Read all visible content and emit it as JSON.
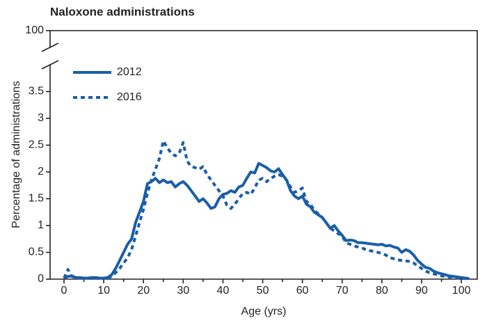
{
  "chart_data": {
    "type": "line",
    "title": "Naloxone administrations",
    "x_label": "Age (yrs)",
    "y_label": "Percentage of administrations",
    "x": [
      0,
      1,
      2,
      3,
      4,
      5,
      6,
      7,
      8,
      9,
      10,
      11,
      12,
      13,
      14,
      15,
      16,
      17,
      18,
      19,
      20,
      21,
      22,
      23,
      24,
      25,
      26,
      27,
      28,
      29,
      30,
      31,
      32,
      33,
      34,
      35,
      36,
      37,
      38,
      39,
      40,
      41,
      42,
      43,
      44,
      45,
      46,
      47,
      48,
      49,
      50,
      51,
      52,
      53,
      54,
      55,
      56,
      57,
      58,
      59,
      60,
      61,
      62,
      63,
      64,
      65,
      66,
      67,
      68,
      69,
      70,
      71,
      72,
      73,
      74,
      75,
      76,
      77,
      78,
      79,
      80,
      81,
      82,
      83,
      84,
      85,
      86,
      87,
      88,
      89,
      90,
      91,
      92,
      93,
      94,
      95,
      96,
      97,
      98,
      99,
      100,
      101,
      102
    ],
    "series": [
      {
        "name": "2012",
        "color": "#1a5ea8",
        "style": "solid",
        "values": [
          0.02,
          0.05,
          0.06,
          0.03,
          0.03,
          0.02,
          0.02,
          0.03,
          0.03,
          0.02,
          0.02,
          0.03,
          0.08,
          0.2,
          0.35,
          0.5,
          0.65,
          0.75,
          1.05,
          1.25,
          1.45,
          1.78,
          1.82,
          1.88,
          1.8,
          1.85,
          1.8,
          1.82,
          1.72,
          1.78,
          1.82,
          1.75,
          1.65,
          1.55,
          1.45,
          1.5,
          1.42,
          1.32,
          1.35,
          1.5,
          1.58,
          1.6,
          1.65,
          1.62,
          1.72,
          1.75,
          1.88,
          2.0,
          1.98,
          2.16,
          2.12,
          2.08,
          2.02,
          2.0,
          2.06,
          1.95,
          1.85,
          1.65,
          1.55,
          1.5,
          1.55,
          1.4,
          1.35,
          1.25,
          1.2,
          1.15,
          1.05,
          0.95,
          1.0,
          0.9,
          0.82,
          0.72,
          0.73,
          0.72,
          0.68,
          0.68,
          0.67,
          0.66,
          0.65,
          0.64,
          0.65,
          0.62,
          0.63,
          0.6,
          0.58,
          0.5,
          0.55,
          0.52,
          0.45,
          0.35,
          0.28,
          0.22,
          0.2,
          0.15,
          0.12,
          0.1,
          0.08,
          0.06,
          0.05,
          0.04,
          0.03,
          0.02,
          0.01
        ]
      },
      {
        "name": "2016",
        "color": "#1a5ea8",
        "style": "dotted",
        "values": [
          0.02,
          0.18,
          0.05,
          0.02,
          0.02,
          0.02,
          0.02,
          0.02,
          0.02,
          0.02,
          0.02,
          0.02,
          0.05,
          0.12,
          0.2,
          0.3,
          0.4,
          0.55,
          0.8,
          1.05,
          1.3,
          1.6,
          1.85,
          2.05,
          2.25,
          2.58,
          2.45,
          2.35,
          2.3,
          2.35,
          2.55,
          2.2,
          2.1,
          2.08,
          2.05,
          2.1,
          1.95,
          1.85,
          1.75,
          1.65,
          1.55,
          1.38,
          1.32,
          1.4,
          1.5,
          1.6,
          1.62,
          1.58,
          1.7,
          1.85,
          1.88,
          1.82,
          1.88,
          1.92,
          1.95,
          1.92,
          1.85,
          1.72,
          1.62,
          1.65,
          1.7,
          1.45,
          1.4,
          1.28,
          1.22,
          1.15,
          1.05,
          0.95,
          0.9,
          0.85,
          0.8,
          0.68,
          0.65,
          0.62,
          0.6,
          0.58,
          0.55,
          0.53,
          0.52,
          0.5,
          0.48,
          0.45,
          0.4,
          0.38,
          0.36,
          0.35,
          0.34,
          0.33,
          0.3,
          0.25,
          0.2,
          0.15,
          0.12,
          0.1,
          0.08,
          0.06,
          0.05,
          0.04,
          0.03,
          0.02,
          0.02,
          0.01,
          0.01
        ]
      }
    ],
    "xlim": [
      -3.5,
      104
    ],
    "xticks": [
      0,
      10,
      20,
      30,
      40,
      50,
      60,
      70,
      80,
      90,
      100
    ],
    "ylim": [
      0,
      100
    ],
    "yticks": [
      0,
      0.5,
      1,
      1.5,
      2,
      2.5,
      3,
      3.5,
      100
    ],
    "y_break": [
      4,
      100
    ],
    "legend": "upper left",
    "grid": false
  }
}
